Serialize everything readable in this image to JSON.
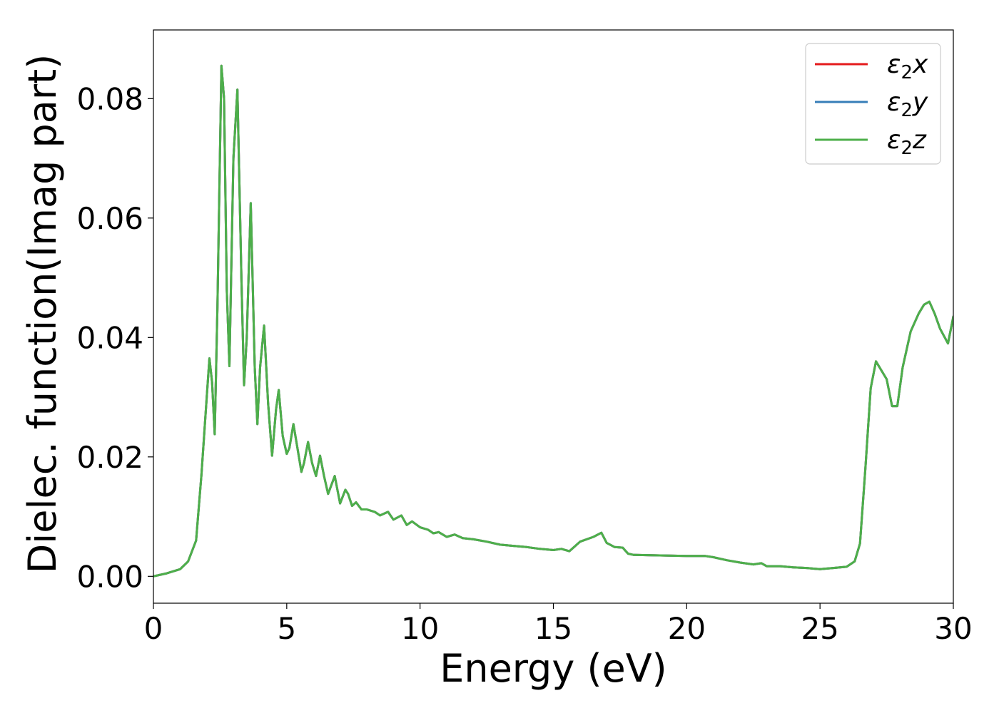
{
  "chart_data": {
    "type": "line",
    "title": "",
    "xlabel": "Energy (eV)",
    "ylabel": "Dielec. function(Imag part)",
    "xlim": [
      0,
      30
    ],
    "ylim": [
      -0.0045,
      0.0915
    ],
    "xticks": [
      0,
      5,
      10,
      15,
      20,
      25,
      30
    ],
    "xtick_labels": [
      "0",
      "5",
      "10",
      "15",
      "20",
      "25",
      "30"
    ],
    "yticks": [
      0.0,
      0.02,
      0.04,
      0.06,
      0.08
    ],
    "ytick_labels": [
      "0.00",
      "0.02",
      "0.04",
      "0.06",
      "0.08"
    ],
    "grid": false,
    "legend_position": "top-right",
    "series": [
      {
        "name": "ε2x",
        "color": "#e41a1c"
      },
      {
        "name": "ε2y",
        "color": "#377eb8"
      },
      {
        "name": "ε2z",
        "color": "#4daf4a"
      }
    ],
    "x": [
      0,
      0.5,
      1.0,
      1.3,
      1.6,
      1.8,
      2.0,
      2.1,
      2.2,
      2.3,
      2.4,
      2.55,
      2.65,
      2.75,
      2.85,
      3.0,
      3.15,
      3.3,
      3.4,
      3.5,
      3.65,
      3.8,
      3.9,
      4.0,
      4.15,
      4.3,
      4.45,
      4.6,
      4.7,
      4.85,
      5.0,
      5.1,
      5.25,
      5.4,
      5.55,
      5.65,
      5.8,
      5.95,
      6.1,
      6.25,
      6.4,
      6.55,
      6.8,
      7.0,
      7.2,
      7.3,
      7.45,
      7.6,
      7.8,
      8.0,
      8.3,
      8.5,
      8.8,
      9.0,
      9.3,
      9.5,
      9.7,
      10.0,
      10.3,
      10.5,
      10.7,
      11.0,
      11.3,
      11.6,
      12.0,
      12.5,
      13.0,
      13.5,
      14.0,
      14.5,
      15.0,
      15.3,
      15.6,
      16.0,
      16.5,
      16.8,
      17.0,
      17.3,
      17.6,
      17.8,
      18.0,
      19.0,
      20.0,
      20.7,
      21.0,
      21.5,
      22.0,
      22.5,
      22.8,
      23.0,
      23.5,
      24.0,
      24.5,
      25.0,
      25.5,
      26.0,
      26.3,
      26.5,
      26.7,
      26.9,
      27.1,
      27.3,
      27.5,
      27.7,
      27.9,
      28.1,
      28.4,
      28.7,
      28.9,
      29.1,
      29.3,
      29.5,
      29.8,
      30.0
    ],
    "y": [
      0.0,
      0.0005,
      0.0012,
      0.0025,
      0.006,
      0.017,
      0.03,
      0.0365,
      0.0325,
      0.0238,
      0.045,
      0.0855,
      0.08,
      0.048,
      0.0352,
      0.07,
      0.0815,
      0.05,
      0.032,
      0.04,
      0.0625,
      0.035,
      0.0255,
      0.035,
      0.042,
      0.029,
      0.0202,
      0.028,
      0.0312,
      0.0235,
      0.0205,
      0.0215,
      0.0255,
      0.0215,
      0.0175,
      0.019,
      0.0225,
      0.019,
      0.0168,
      0.0202,
      0.0168,
      0.0138,
      0.0168,
      0.0122,
      0.0145,
      0.0138,
      0.0118,
      0.0124,
      0.0112,
      0.0112,
      0.0108,
      0.0102,
      0.0108,
      0.0095,
      0.0102,
      0.0086,
      0.0092,
      0.0082,
      0.0078,
      0.0072,
      0.0074,
      0.0066,
      0.007,
      0.0064,
      0.0062,
      0.0058,
      0.0053,
      0.0051,
      0.0049,
      0.0046,
      0.0044,
      0.0046,
      0.0042,
      0.0058,
      0.0066,
      0.0073,
      0.0056,
      0.0049,
      0.0048,
      0.0038,
      0.0036,
      0.0035,
      0.0034,
      0.0034,
      0.0032,
      0.0027,
      0.0023,
      0.002,
      0.0022,
      0.0017,
      0.0017,
      0.0015,
      0.0014,
      0.0012,
      0.0014,
      0.0016,
      0.0025,
      0.0055,
      0.018,
      0.0315,
      0.036,
      0.0345,
      0.033,
      0.0285,
      0.0285,
      0.035,
      0.041,
      0.044,
      0.0455,
      0.046,
      0.044,
      0.0415,
      0.039,
      0.0435
    ]
  }
}
